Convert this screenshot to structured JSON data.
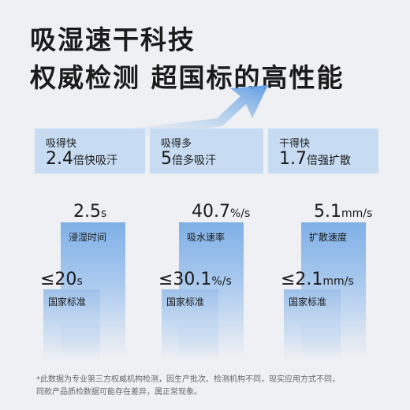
{
  "header": {
    "title": "吸湿速干科技",
    "subtitle": "权威检测 超国标的高性能"
  },
  "cards": [
    {
      "label": "吸得快",
      "value": "2.4",
      "desc": "倍快吸汗"
    },
    {
      "label": "吸得多",
      "value": "5",
      "desc": "倍多吸汗"
    },
    {
      "label": "干得快",
      "value": "1.7",
      "desc": "倍强扩散"
    }
  ],
  "comparisons": [
    {
      "product": {
        "value": "2.5",
        "unit": "s",
        "label": "浸湿时间"
      },
      "standard": {
        "value": "≤20",
        "unit": "s",
        "label": "国家标准"
      }
    },
    {
      "product": {
        "value": "40.7",
        "unit": "%/s",
        "label": "吸水速率"
      },
      "standard": {
        "value": "≤30.1",
        "unit": "%/s",
        "label": "国家标准"
      }
    },
    {
      "product": {
        "value": "5.1",
        "unit": "mm/s",
        "label": "扩散速度"
      },
      "standard": {
        "value": "≤2.1",
        "unit": "mm/s",
        "label": "国家标准"
      }
    }
  ],
  "footnote": [
    "*此数据为专业第三方权威机构检测，因生产批次、检测机构不同，现实应用方式不同，",
    "同款产品质检数据可能存在差异，属正常现象。"
  ]
}
